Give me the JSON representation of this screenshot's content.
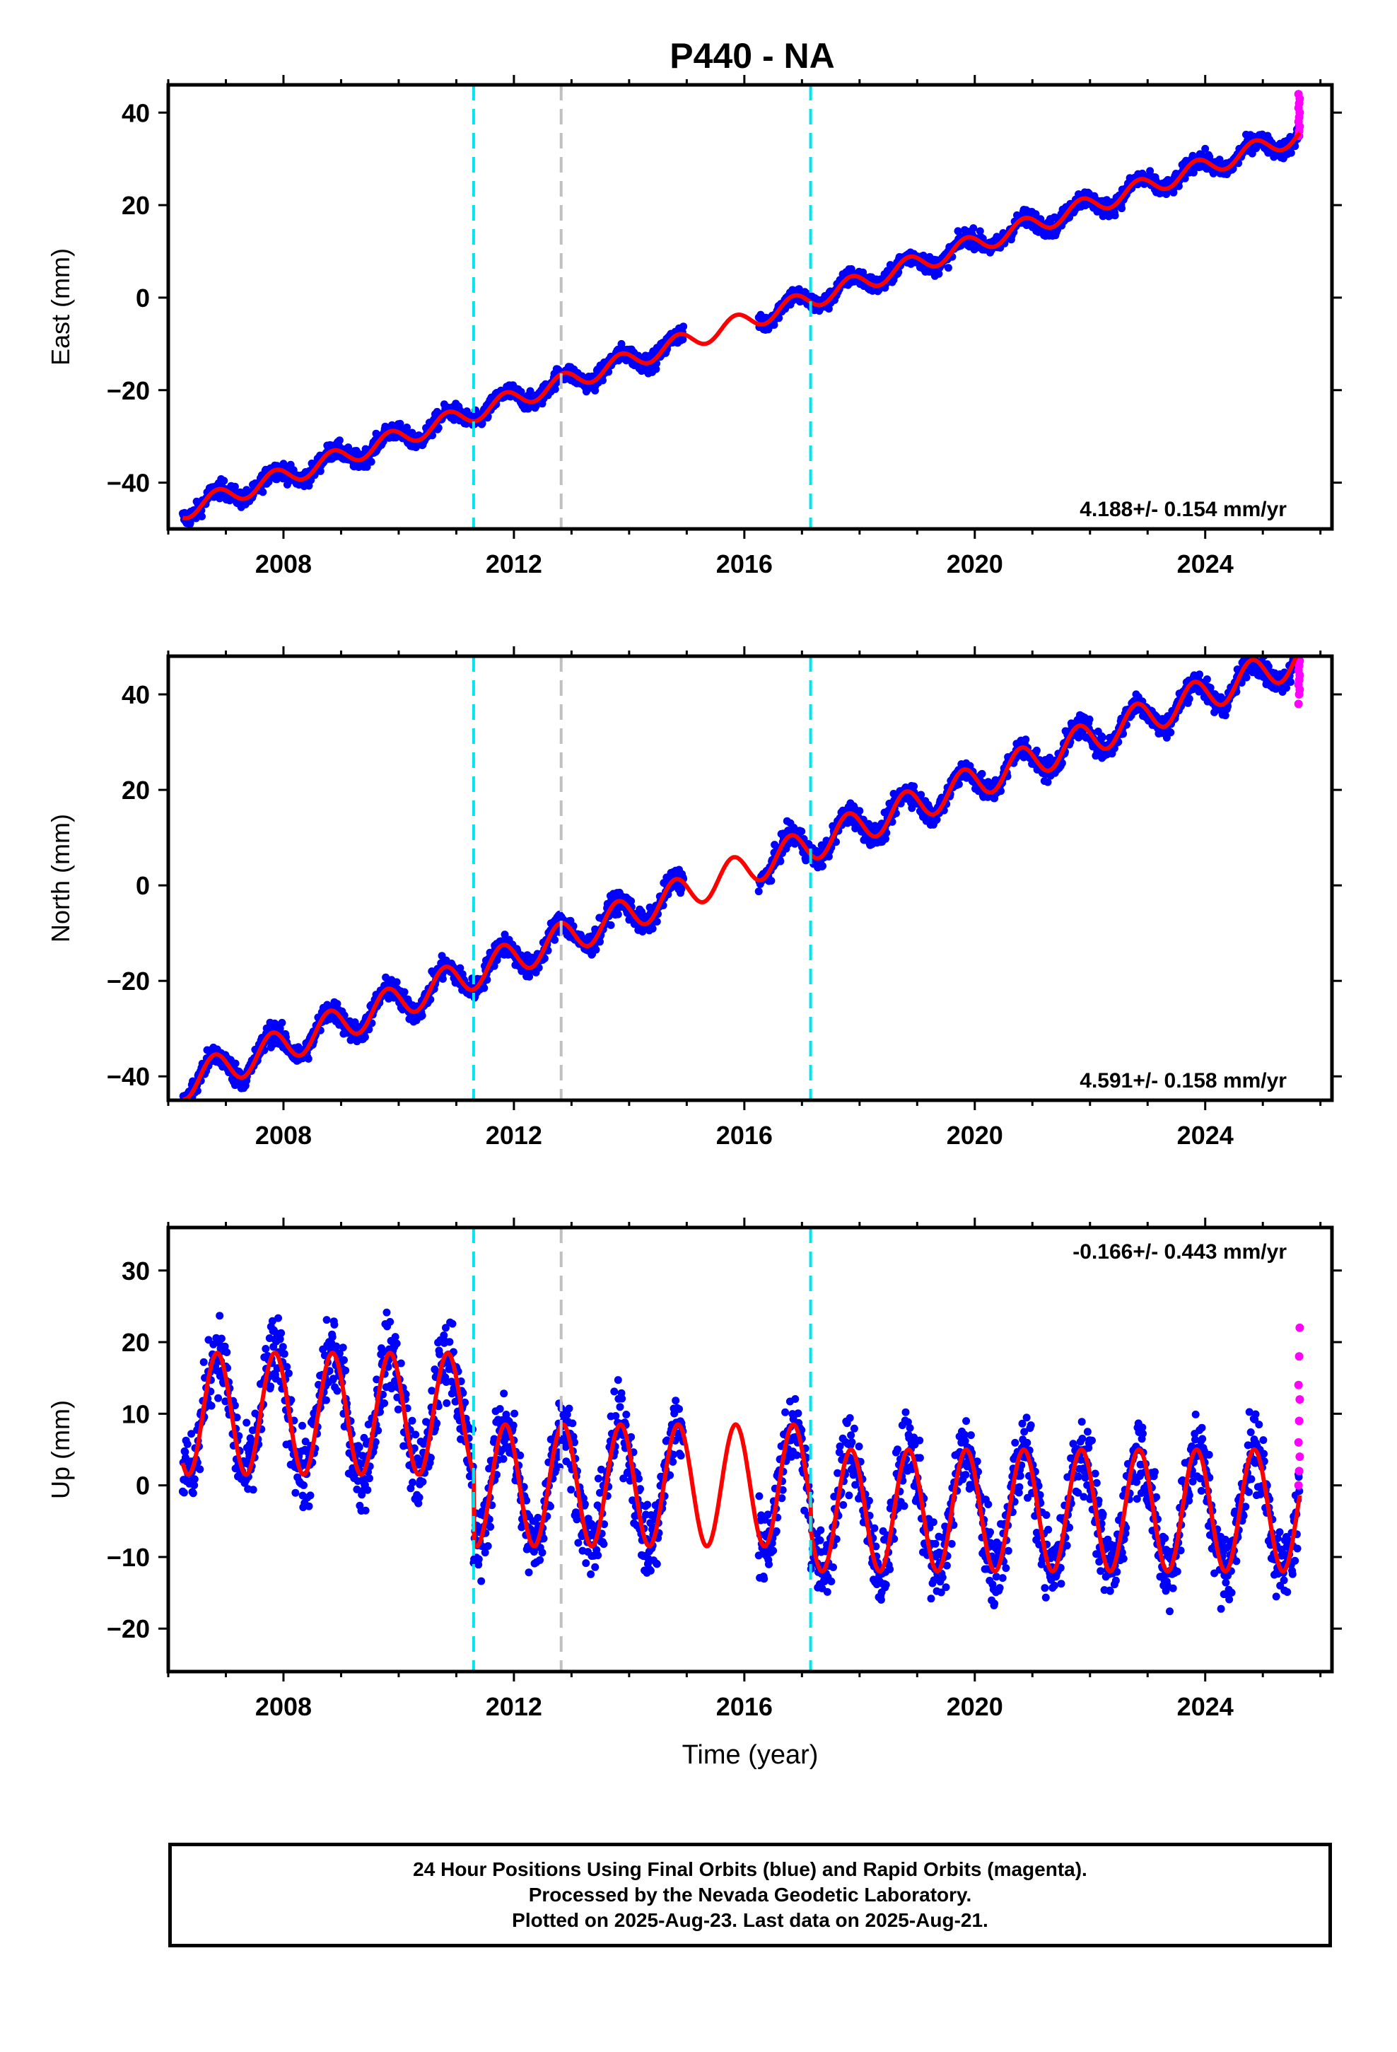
{
  "title": "P440 - NA",
  "colors": {
    "final_orbits": "#0000ff",
    "rapid_orbits": "#ff00ff",
    "model": "#ff0000",
    "event_cyan": "#00e5ee",
    "event_gray": "#c0c0c0",
    "axis": "#000000"
  },
  "footer": {
    "line1": "24 Hour Positions Using Final Orbits (blue) and Rapid Orbits (magenta).",
    "line2": "Processed by the Nevada Geodetic Laboratory.",
    "line3": "Plotted on 2025-Aug-23. Last data on 2025-Aug-21."
  },
  "chart_data": [
    {
      "type": "scatter",
      "component": "east",
      "ylabel": "East (mm)",
      "xlabel": "",
      "xlim": [
        2006.0,
        2026.2
      ],
      "ylim": [
        -50,
        46
      ],
      "x_ticks": [
        2008,
        2012,
        2016,
        2020,
        2024
      ],
      "y_ticks": [
        -40,
        -20,
        0,
        20,
        40
      ],
      "rate_label": "4.188+/- 0.154 mm/yr",
      "rate_label_position": "bottom-right",
      "data_span": [
        2006.25,
        2025.64
      ],
      "data_gap": [
        2014.95,
        2016.25
      ],
      "model": {
        "start_value": -46.0,
        "rate_mm_per_yr": 4.188,
        "annual_amplitude": 2.0,
        "annual_phase_year": 0.6,
        "offset_at_2017_15": 0.0
      },
      "scatter_spread_mm": 1.6,
      "rapid_orbit_values": [
        35,
        36,
        37,
        38,
        39,
        40,
        41,
        42,
        43,
        44
      ],
      "event_lines": [
        {
          "year": 2011.3,
          "color": "cyan"
        },
        {
          "year": 2012.82,
          "color": "gray"
        },
        {
          "year": 2017.15,
          "color": "cyan"
        }
      ]
    },
    {
      "type": "scatter",
      "component": "north",
      "ylabel": "North (mm)",
      "xlabel": "",
      "xlim": [
        2006.0,
        2026.2
      ],
      "ylim": [
        -45,
        48
      ],
      "x_ticks": [
        2008,
        2012,
        2016,
        2020,
        2024
      ],
      "y_ticks": [
        -40,
        -20,
        0,
        20,
        40
      ],
      "rate_label": "4.591+/- 0.158 mm/yr",
      "rate_label_position": "bottom-right",
      "data_span": [
        2006.25,
        2025.64
      ],
      "data_gap": [
        2014.95,
        2016.25
      ],
      "model": {
        "start_value": -41.5,
        "rate_mm_per_yr": 4.591,
        "annual_amplitude": 3.5,
        "annual_phase_year": 0.55,
        "offset_at_2017_15": 0.0
      },
      "scatter_spread_mm": 2.0,
      "rapid_orbit_values": [
        38,
        40,
        41,
        42,
        43,
        44,
        45,
        46,
        47
      ],
      "event_lines": [
        {
          "year": 2011.3,
          "color": "cyan"
        },
        {
          "year": 2012.82,
          "color": "gray"
        },
        {
          "year": 2017.15,
          "color": "cyan"
        }
      ]
    },
    {
      "type": "scatter",
      "component": "up",
      "ylabel": "Up (mm)",
      "xlabel": "Time (year)",
      "xlim": [
        2006.0,
        2026.2
      ],
      "ylim": [
        -26,
        36
      ],
      "x_ticks": [
        2008,
        2012,
        2016,
        2020,
        2024
      ],
      "y_ticks": [
        -20,
        -10,
        0,
        10,
        20,
        30
      ],
      "rate_label": "-0.166+/- 0.443 mm/yr",
      "rate_label_position": "top-right",
      "data_span": [
        2006.25,
        2025.64
      ],
      "data_gap": [
        2014.95,
        2016.25
      ],
      "model_segments": [
        {
          "from": 2006.25,
          "to": 2011.3,
          "mean": 10.0,
          "amplitude": 8.5
        },
        {
          "from": 2011.3,
          "to": 2017.15,
          "mean": 0.0,
          "amplitude": 8.5
        },
        {
          "from": 2017.15,
          "to": 2025.64,
          "mean": -3.5,
          "amplitude": 8.5
        }
      ],
      "model_annual_phase_year": 0.6,
      "scatter_spread_mm": 4.5,
      "rapid_orbit_values": [
        0,
        2,
        4,
        6,
        9,
        12,
        14,
        18,
        22
      ],
      "event_lines": [
        {
          "year": 2011.3,
          "color": "cyan"
        },
        {
          "year": 2012.82,
          "color": "gray"
        },
        {
          "year": 2017.15,
          "color": "cyan"
        }
      ]
    }
  ]
}
